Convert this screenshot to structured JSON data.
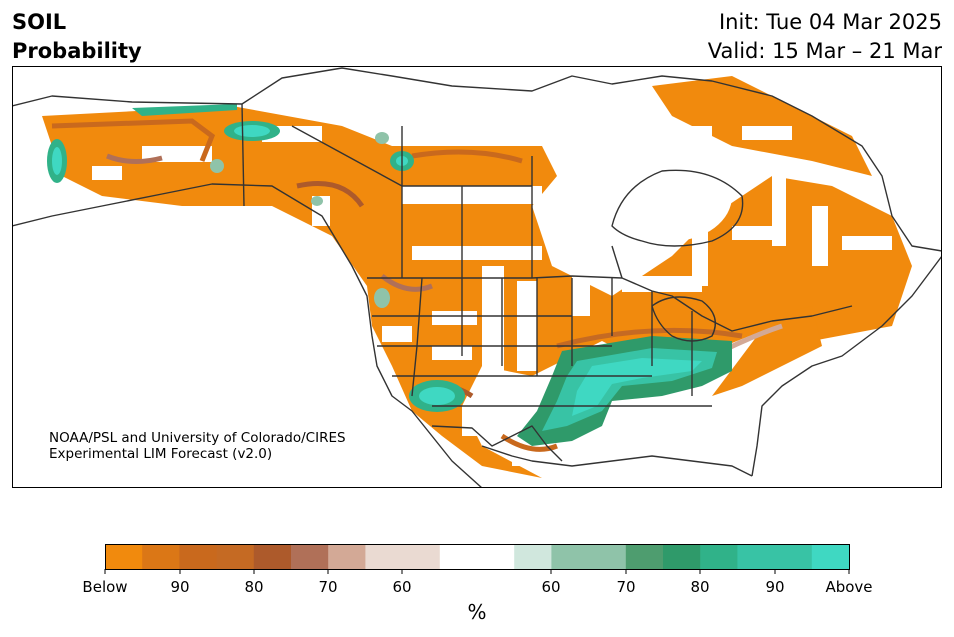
{
  "header": {
    "title_line1": "SOIL",
    "title_line2": "Probability",
    "init": "Init: Tue 04 Mar 2025",
    "valid": "Valid: 15 Mar – 21 Mar"
  },
  "credit": {
    "line1": "NOAA/PSL and University of Colorado/CIRES",
    "line2": "Experimental LIM Forecast (v2.0)"
  },
  "colorbar": {
    "colors": [
      "#f18a0d",
      "#db7716",
      "#c9691d",
      "#c56a23",
      "#ad5a2b",
      "#b07058",
      "#d3a996",
      "#eadad2",
      "#ffffff",
      "#ffffff",
      "#d0e7dd",
      "#8fc3a9",
      "#4e9d6f",
      "#2f9a6a",
      "#30b289",
      "#38c3a5",
      "#3fd8c2"
    ],
    "tick_labels": [
      "Below",
      "90",
      "80",
      "70",
      "60",
      "60",
      "70",
      "80",
      "90",
      "Above"
    ],
    "unit": "%"
  },
  "legend_colors": {
    "below": "#f18a0d",
    "above": "#3fd8c2",
    "boundary": "#333333"
  }
}
